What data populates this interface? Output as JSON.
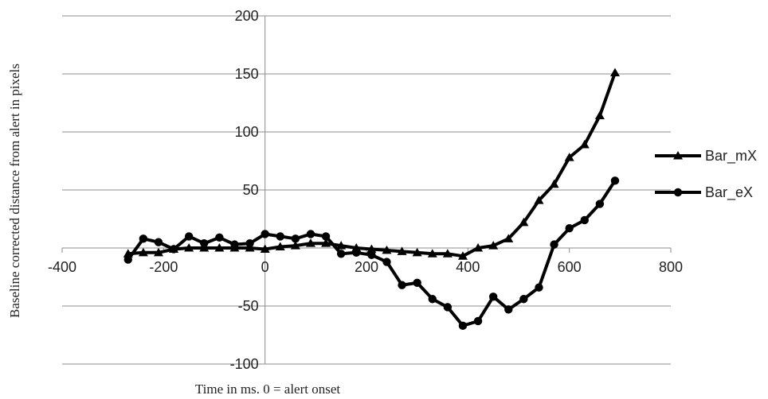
{
  "chart_data": {
    "type": "line",
    "title": "",
    "xlabel": "Time in ms. 0 = alert onset",
    "ylabel": "Baseline corrected distance from alert in pixels",
    "xlim": [
      -400,
      800
    ],
    "ylim": [
      -100,
      200
    ],
    "xticks": [
      -400,
      -200,
      0,
      200,
      400,
      600,
      800
    ],
    "yticks": [
      -100,
      -50,
      0,
      50,
      100,
      150,
      200
    ],
    "xtick_labels": [
      "-400",
      "-200",
      "0",
      "200",
      "400",
      "600",
      "800"
    ],
    "ytick_labels": [
      "-100",
      "-50",
      "",
      "50",
      "100",
      "150",
      "200"
    ],
    "grid": "horizontal",
    "legend": "right",
    "series": [
      {
        "name": "Bar_mX",
        "marker": "triangle",
        "color": "#000000",
        "x": [
          -270,
          -240,
          -210,
          -180,
          -150,
          -120,
          -90,
          -60,
          -30,
          0,
          30,
          60,
          90,
          120,
          150,
          180,
          210,
          240,
          270,
          300,
          330,
          360,
          390,
          420,
          450,
          480,
          510,
          540,
          570,
          600,
          630,
          660,
          690
        ],
        "y": [
          -5,
          -4,
          -4,
          -1,
          0,
          0,
          0,
          0,
          0,
          -1,
          1,
          2,
          4,
          4,
          2,
          0,
          -1,
          -2,
          -3,
          -4,
          -5,
          -5,
          -7,
          0,
          2,
          8,
          22,
          41,
          55,
          78,
          89,
          114,
          151
        ]
      },
      {
        "name": "Bar_eX",
        "marker": "circle",
        "color": "#000000",
        "x": [
          -270,
          -240,
          -210,
          -180,
          -150,
          -120,
          -90,
          -60,
          -30,
          0,
          30,
          60,
          90,
          120,
          150,
          180,
          210,
          240,
          270,
          300,
          330,
          360,
          390,
          420,
          450,
          480,
          510,
          540,
          570,
          600,
          630,
          660,
          690
        ],
        "y": [
          -10,
          8,
          5,
          -1,
          10,
          4,
          9,
          3,
          4,
          12,
          10,
          8,
          12,
          10,
          -5,
          -4,
          -6,
          -12,
          -32,
          -30,
          -44,
          -51,
          -67,
          -63,
          -42,
          -53,
          -44,
          -34,
          3,
          17,
          24,
          38,
          58
        ]
      }
    ]
  }
}
